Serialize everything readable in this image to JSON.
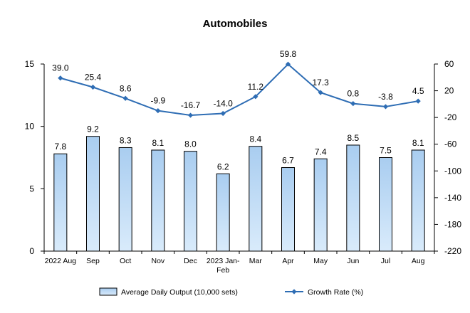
{
  "chart_data": {
    "type": "bar+line",
    "title": "Automobiles",
    "categories": [
      "2022 Aug",
      "Sep",
      "Oct",
      "Nov",
      "Dec",
      "2023 Jan-Feb",
      "Mar",
      "Apr",
      "May",
      "Jun",
      "Jul",
      "Aug"
    ],
    "series": [
      {
        "name": "Average Daily Output (10,000 sets)",
        "type": "bar",
        "axis": "left",
        "values": [
          7.8,
          9.2,
          8.3,
          8.1,
          8.0,
          6.2,
          8.4,
          6.7,
          7.4,
          8.5,
          7.5,
          8.1
        ],
        "labels": [
          "7.8",
          "9.2",
          "8.3",
          "8.1",
          "8.0",
          "6.2",
          "8.4",
          "6.7",
          "7.4",
          "8.5",
          "7.5",
          "8.1"
        ]
      },
      {
        "name": "Growth Rate (%)",
        "type": "line",
        "axis": "right",
        "values": [
          39.0,
          25.4,
          8.6,
          -9.9,
          -16.7,
          -14.0,
          11.2,
          59.8,
          17.3,
          0.8,
          -3.8,
          4.5
        ],
        "labels": [
          "39.0",
          "25.4",
          "8.6",
          "-9.9",
          "-16.7",
          "-14.0",
          "11.2",
          "59.8",
          "17.3",
          "0.8",
          "-3.8",
          "4.5"
        ]
      }
    ],
    "left_axis": {
      "ylim": [
        0,
        15
      ],
      "ticks": [
        "0",
        "5",
        "10",
        "15"
      ],
      "tick_values": [
        0,
        5,
        10,
        15
      ]
    },
    "right_axis": {
      "ylim": [
        -220,
        60
      ],
      "ticks": [
        "60",
        "20",
        "-20",
        "-60",
        "-100",
        "-140",
        "-180",
        "-220"
      ],
      "tick_values": [
        60,
        20,
        -20,
        -60,
        -100,
        -140,
        -180,
        -220
      ]
    },
    "grid": false,
    "legend_position": "bottom",
    "colors": {
      "bar_top": "#a9cdf0",
      "bar_bottom": "#d9ebfb",
      "bar_stroke": "#000000",
      "line": "#2e6db4",
      "axis": "#000000"
    }
  }
}
